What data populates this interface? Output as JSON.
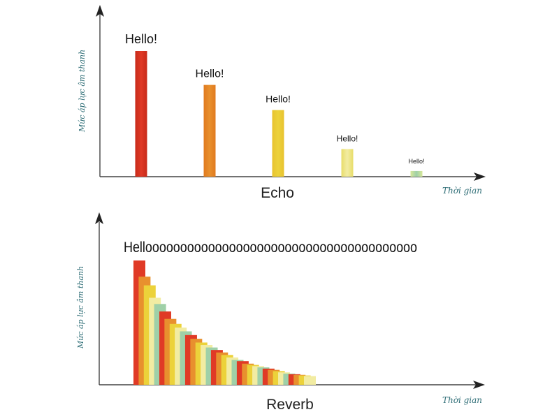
{
  "colors": {
    "axis": "#444444",
    "red": "#e03a26",
    "orange": "#e8902e",
    "yellow": "#ecd23a",
    "pale_yellow": "#f2eca2",
    "green": "#9fd0a8"
  },
  "echo": {
    "title": "Echo",
    "ylabel": "Mức áp lực âm thanh",
    "xlabel": "Thời gian",
    "pulses": [
      {
        "text": "Hello!",
        "level": 1.0
      },
      {
        "text": "Hello!",
        "level": 0.73
      },
      {
        "text": "Hello!",
        "level": 0.53
      },
      {
        "text": "Hello!",
        "level": 0.22
      },
      {
        "text": "Hello!",
        "level": 0.045
      }
    ]
  },
  "reverb": {
    "title": "Reverb",
    "ylabel": "Mức áp lực âm thanh",
    "xlabel": "Thời gian",
    "text": "Hellooooooooooooooooooooooooooooooooooooooo",
    "levels": [
      1.0,
      0.87,
      0.8,
      0.7,
      0.65,
      0.59,
      0.53,
      0.49,
      0.46,
      0.43,
      0.4,
      0.37,
      0.34,
      0.32,
      0.3,
      0.28,
      0.26,
      0.24,
      0.22,
      0.2,
      0.19,
      0.17,
      0.16,
      0.15,
      0.14,
      0.13,
      0.12,
      0.11,
      0.1,
      0.09,
      0.085,
      0.08,
      0.075,
      0.07
    ]
  }
}
